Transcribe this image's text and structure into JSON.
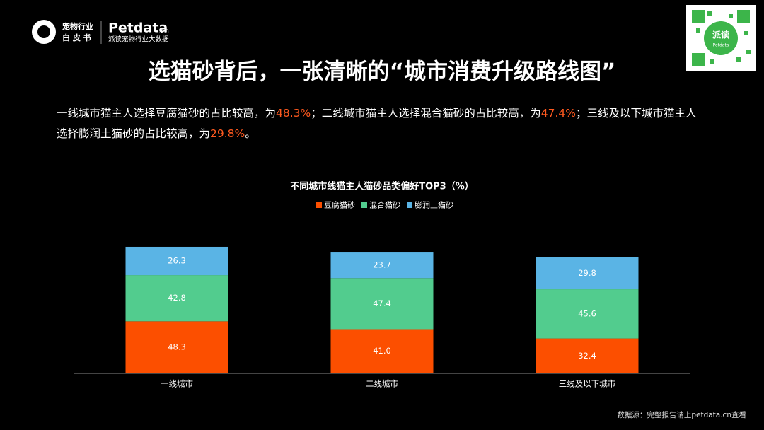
{
  "header": {
    "logo_line1": "宠物行业",
    "logo_line2": "白 皮 书",
    "brand": "Petdata",
    "brand_suffix": ".cn",
    "brand_sub": "派读宠物行业大数据",
    "qr_label": "派读",
    "qr_sub": "Petdata"
  },
  "headline": "选猫砂背后，一张清晰的“城市消费升级路线图”",
  "description": [
    "一线城市猫主人选择豆腐猫砂的占比较高，为",
    "48.3%",
    "；二线城市猫主人选择混合猫砂的占比较高，为",
    "47.4%",
    "；三线及以下城市猫主人选择膨润土猫砂的占比较高，为",
    "29.8%",
    "。"
  ],
  "source": "数据源：完整报告请上petdata.cn查看",
  "chart_data": {
    "type": "stacked_bar",
    "title": "不同城市线猫主人猫砂品类偏好TOP3（%）",
    "categories": [
      "一线城市",
      "二线城市",
      "三线及以下城市"
    ],
    "series": [
      {
        "name": "豆腐猫砂",
        "color": "#fc4f00",
        "values": [
          48.3,
          41.0,
          32.4
        ],
        "value_labels": [
          "48.3",
          "41.0",
          "32.4"
        ]
      },
      {
        "name": "混合猫砂",
        "color": "#52cc8e",
        "values": [
          42.8,
          47.4,
          45.6
        ],
        "value_labels": [
          "42.8",
          "47.4",
          "45.6"
        ]
      },
      {
        "name": "膨润土猫砂",
        "color": "#5ab4e5",
        "values": [
          26.3,
          23.7,
          29.8
        ],
        "value_labels": [
          "26.3",
          "23.7",
          "29.8"
        ]
      }
    ]
  }
}
